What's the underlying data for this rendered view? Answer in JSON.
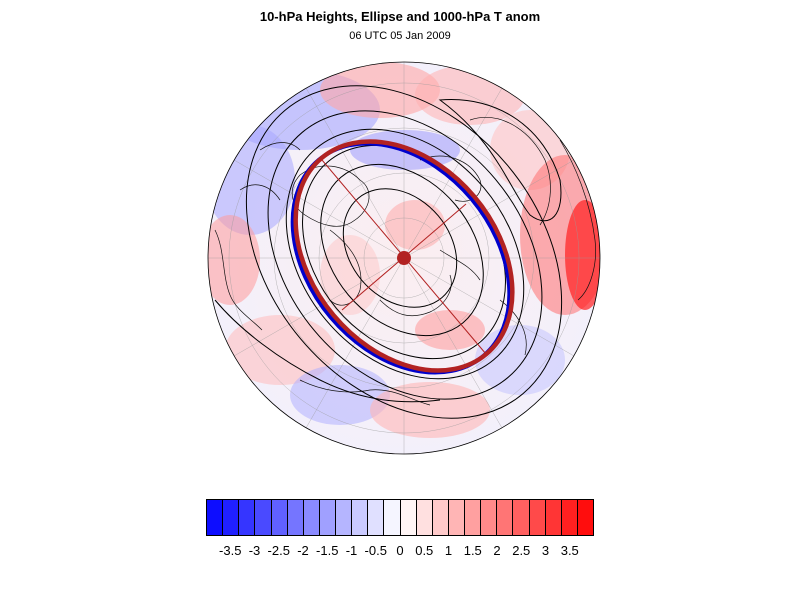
{
  "title": "10-hPa Heights, Ellipse and 1000-hPa T anom",
  "subtitle": "06 UTC 05 Jan 2009",
  "colorbar": {
    "colors": [
      "#0d0dff",
      "#2020ff",
      "#3535ff",
      "#4a4aff",
      "#6060ff",
      "#7575ff",
      "#8a8aff",
      "#a0a0ff",
      "#b5b5ff",
      "#cacaff",
      "#e0e0ff",
      "#f5f5ff",
      "#fff5f5",
      "#ffe0e0",
      "#ffcaca",
      "#ffb5b5",
      "#ffa0a0",
      "#ff8a8a",
      "#ff7575",
      "#ff6060",
      "#ff4a4a",
      "#ff3535",
      "#ff2020",
      "#ff0d0d"
    ],
    "tick_labels": [
      "-3.5",
      "-3",
      "-2.5",
      "-2",
      "-1.5",
      "-1",
      "-0.5",
      "0",
      "0.5",
      "1",
      "1.5",
      "2",
      "2.5",
      "3",
      "3.5"
    ]
  },
  "map": {
    "projection": "polar stereographic (north)",
    "ellipse_color": "#b22222",
    "ellipse_shadow_color": "#0000cc",
    "contour_color": "#000000"
  }
}
